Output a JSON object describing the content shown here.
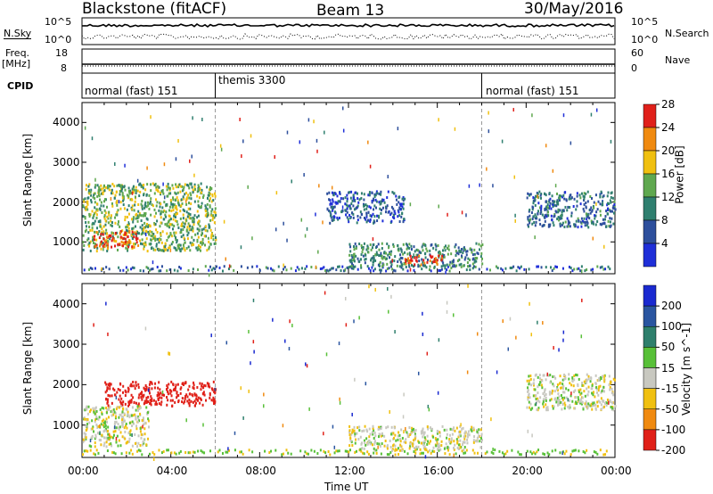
{
  "header": {
    "radar": "Blackstone (fitACF)",
    "beam": "Beam 13",
    "date": "30/May/2016"
  },
  "top_panels": {
    "nsky_label": "N.Sky",
    "nsearch_label": "N.Search",
    "nsky_ticks": [
      "10^5",
      "10^0"
    ],
    "nsearch_ticks": [
      "10^5",
      "10^0"
    ],
    "freq_label": "Freq.",
    "freq_unit": "[MHz]",
    "freq_ticks": [
      "18",
      "8"
    ],
    "nave_label": "Nave",
    "nave_ticks": [
      "60",
      "0"
    ],
    "cpid_label": "CPID",
    "cpid_modes": [
      "normal (fast) 151",
      "themis 3300",
      "normal (fast) 151"
    ]
  },
  "chart_data": [
    {
      "type": "heatmap",
      "name": "power-panel",
      "ylabel": "Slant Range [km]",
      "xlabel": "",
      "ylim": [
        200,
        4500
      ],
      "xlim": [
        "00:00",
        "24:00"
      ],
      "yticks": [
        1000,
        2000,
        3000,
        4000
      ],
      "colorbar": {
        "label": "Power [dB]",
        "ticks": [
          4,
          8,
          12,
          16,
          20,
          24,
          28
        ],
        "colors": [
          "#1f2fd8",
          "#2d4f9c",
          "#2f7f6f",
          "#5fa84f",
          "#f0c010",
          "#f08a10",
          "#e0201a"
        ]
      },
      "echo_regions": [
        {
          "t": [
            0.0,
            6.0
          ],
          "r": [
            800,
            2500
          ],
          "power_db": 16
        },
        {
          "t": [
            0.5,
            2.5
          ],
          "r": [
            900,
            1300
          ],
          "power_db": 28
        },
        {
          "t": [
            12.0,
            18.0
          ],
          "r": [
            400,
            1000
          ],
          "power_db": 12
        },
        {
          "t": [
            14.5,
            16.2
          ],
          "r": [
            450,
            700
          ],
          "power_db": 28
        },
        {
          "t": [
            11.0,
            14.5
          ],
          "r": [
            1500,
            2300
          ],
          "power_db": 8
        },
        {
          "t": [
            20.0,
            24.0
          ],
          "r": [
            1400,
            2300
          ],
          "power_db": 10
        }
      ]
    },
    {
      "type": "heatmap",
      "name": "velocity-panel",
      "ylabel": "Slant Range [km]",
      "xlabel": "Time UT",
      "ylim": [
        200,
        4500
      ],
      "xlim": [
        "00:00",
        "24:00"
      ],
      "yticks": [
        1000,
        2000,
        3000,
        4000
      ],
      "xticks": [
        "00:00",
        "04:00",
        "08:00",
        "12:00",
        "16:00",
        "20:00",
        "00:00"
      ],
      "colorbar": {
        "label": "Velocity [m s^-1]",
        "ticks": [
          200,
          100,
          50,
          15,
          -15,
          -50,
          -100,
          -200
        ],
        "colors": [
          "#1a2ad0",
          "#2a55a0",
          "#2e7f6c",
          "#58c038",
          "#c8c8c0",
          "#f0c010",
          "#f08a10",
          "#e02018"
        ]
      },
      "echo_regions": [
        {
          "t": [
            1.0,
            6.0
          ],
          "r": [
            1500,
            2100
          ],
          "velocity": -150
        },
        {
          "t": [
            0.0,
            3.0
          ],
          "r": [
            500,
            1500
          ],
          "velocity": 0
        },
        {
          "t": [
            12.0,
            18.0
          ],
          "r": [
            400,
            1000
          ],
          "velocity": 0
        },
        {
          "t": [
            20.0,
            24.0
          ],
          "r": [
            1400,
            2300
          ],
          "velocity": 0
        }
      ]
    }
  ],
  "mode_boundaries": [
    "06:00",
    "18:00"
  ]
}
